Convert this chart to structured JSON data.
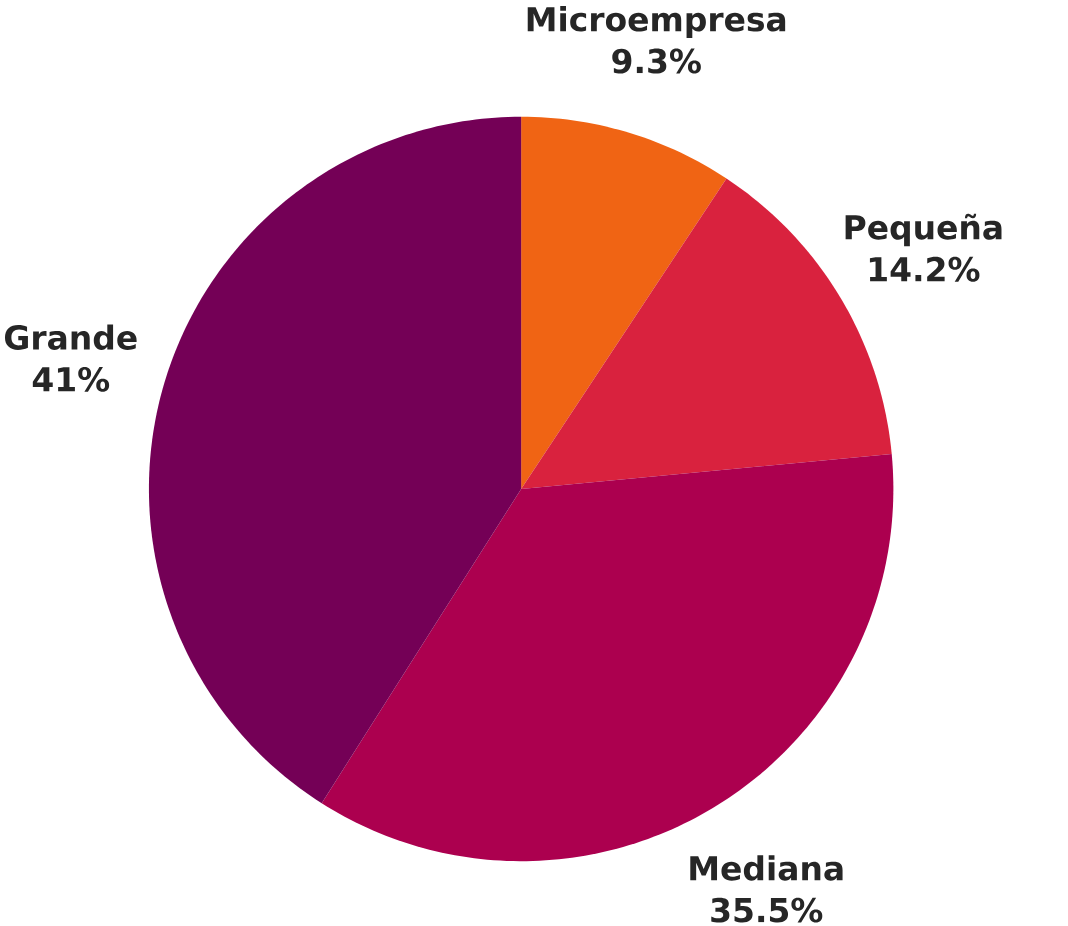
{
  "chart_data": {
    "type": "pie",
    "categories": [
      "Microempresa",
      "Pequeña",
      "Mediana",
      "Grande"
    ],
    "values": [
      9.3,
      14.2,
      35.5,
      41
    ],
    "value_labels": [
      "9.3%",
      "14.2%",
      "35.5%",
      "41%"
    ],
    "colors": [
      "#f06414",
      "#d9223e",
      "#ac004f",
      "#740056"
    ]
  }
}
